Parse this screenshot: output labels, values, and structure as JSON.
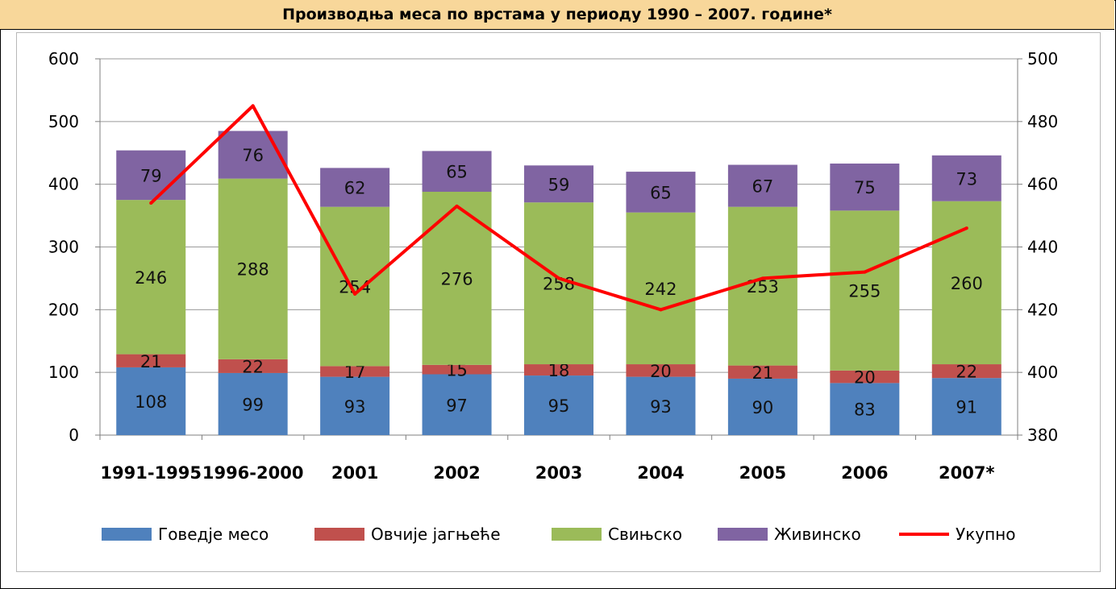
{
  "title": "Производња меса по врстама у периоду 1990 – 2007. године*",
  "chart_data": {
    "type": "bar",
    "stacked": true,
    "categories": [
      "1991-1995",
      "1996-2000",
      "2001",
      "2002",
      "2003",
      "2004",
      "2005",
      "2006",
      "2007*"
    ],
    "series": [
      {
        "name": "Говедје месо",
        "color": "#4f81bd",
        "values": [
          108,
          99,
          93,
          97,
          95,
          93,
          90,
          83,
          91
        ]
      },
      {
        "name": "Овчије јагњеће",
        "color": "#c0504d",
        "values": [
          21,
          22,
          17,
          15,
          18,
          20,
          21,
          20,
          22
        ]
      },
      {
        "name": "Свињско",
        "color": "#9bbb59",
        "values": [
          246,
          288,
          254,
          276,
          258,
          242,
          253,
          255,
          260
        ]
      },
      {
        "name": "Живинско",
        "color": "#8064a2",
        "values": [
          79,
          76,
          62,
          65,
          59,
          65,
          67,
          75,
          73
        ]
      }
    ],
    "line_series": {
      "name": "Укупно",
      "color": "#ff0000",
      "axis": "right",
      "values": [
        454,
        485,
        425,
        453,
        430,
        420,
        430,
        432,
        446
      ]
    },
    "ylim": [
      0,
      600
    ],
    "yticks": [
      0,
      100,
      200,
      300,
      400,
      500,
      600
    ],
    "y2lim": [
      380,
      500
    ],
    "y2ticks": [
      380,
      400,
      420,
      440,
      460,
      480,
      500
    ],
    "grid": true,
    "legend_position": "bottom"
  }
}
